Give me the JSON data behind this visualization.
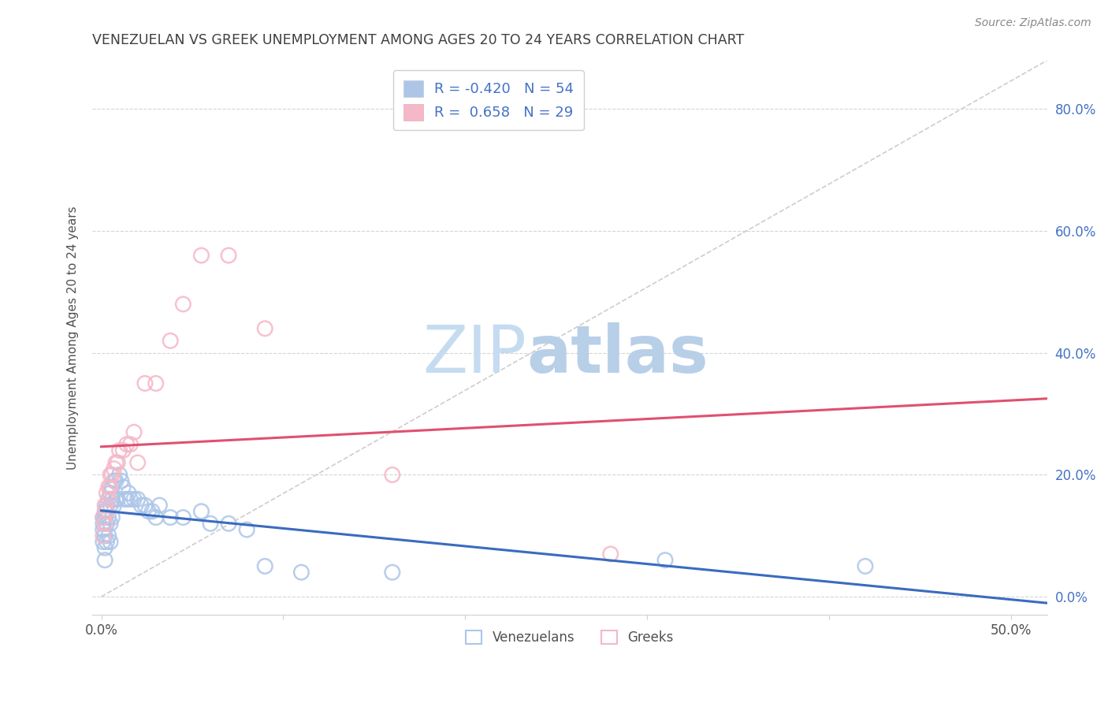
{
  "title": "VENEZUELAN VS GREEK UNEMPLOYMENT AMONG AGES 20 TO 24 YEARS CORRELATION CHART",
  "source": "Source: ZipAtlas.com",
  "xlabel": "",
  "ylabel": "Unemployment Among Ages 20 to 24 years",
  "xlim": [
    -0.005,
    0.52
  ],
  "ylim": [
    -0.03,
    0.88
  ],
  "xticks": [
    0.0,
    0.1,
    0.2,
    0.3,
    0.4,
    0.5
  ],
  "xticklabels_show": [
    "0.0%",
    "",
    "",
    "",
    "",
    "50.0%"
  ],
  "yticks_right": [
    0.0,
    0.2,
    0.4,
    0.6,
    0.8
  ],
  "yticklabels_right": [
    "0.0%",
    "20.0%",
    "40.0%",
    "60.0%",
    "80.0%"
  ],
  "venezuelan_R": "-0.420",
  "venezuelan_N": "54",
  "greek_R": "0.658",
  "greek_N": "29",
  "venezuelan_color": "#adc6e8",
  "venezuelan_edge_color": "#adc6e8",
  "greek_color": "#f5b8c8",
  "greek_edge_color": "#f5b8c8",
  "venezuelan_line_color": "#3a6bbf",
  "greek_line_color": "#e05070",
  "diagonal_color": "#c8c8c8",
  "background_color": "#ffffff",
  "grid_color": "#d5d5d5",
  "title_color": "#404040",
  "axis_label_color": "#505050",
  "tick_color_right": "#4472c4",
  "tick_color_bottom": "#505050",
  "legend_venezuelan_label": "R = -0.420   N = 54",
  "legend_greek_label": "R =  0.658   N = 29",
  "venezuelan_x": [
    0.001,
    0.001,
    0.001,
    0.001,
    0.002,
    0.002,
    0.002,
    0.002,
    0.002,
    0.003,
    0.003,
    0.003,
    0.003,
    0.004,
    0.004,
    0.004,
    0.005,
    0.005,
    0.005,
    0.005,
    0.006,
    0.006,
    0.006,
    0.007,
    0.007,
    0.008,
    0.008,
    0.009,
    0.01,
    0.011,
    0.012,
    0.013,
    0.014,
    0.015,
    0.016,
    0.018,
    0.02,
    0.022,
    0.024,
    0.026,
    0.028,
    0.03,
    0.032,
    0.038,
    0.045,
    0.055,
    0.06,
    0.07,
    0.08,
    0.09,
    0.11,
    0.16,
    0.31,
    0.42
  ],
  "venezuelan_y": [
    0.13,
    0.12,
    0.11,
    0.09,
    0.14,
    0.13,
    0.1,
    0.08,
    0.06,
    0.15,
    0.14,
    0.12,
    0.09,
    0.16,
    0.13,
    0.1,
    0.17,
    0.15,
    0.12,
    0.09,
    0.18,
    0.16,
    0.13,
    0.19,
    0.15,
    0.19,
    0.16,
    0.16,
    0.2,
    0.19,
    0.18,
    0.16,
    0.16,
    0.17,
    0.16,
    0.16,
    0.16,
    0.15,
    0.15,
    0.14,
    0.14,
    0.13,
    0.15,
    0.13,
    0.13,
    0.14,
    0.12,
    0.12,
    0.11,
    0.05,
    0.04,
    0.04,
    0.06,
    0.05
  ],
  "greek_x": [
    0.001,
    0.001,
    0.002,
    0.002,
    0.003,
    0.003,
    0.004,
    0.004,
    0.005,
    0.005,
    0.006,
    0.007,
    0.008,
    0.009,
    0.01,
    0.012,
    0.014,
    0.016,
    0.018,
    0.02,
    0.024,
    0.03,
    0.038,
    0.045,
    0.055,
    0.07,
    0.09,
    0.16,
    0.28
  ],
  "greek_y": [
    0.13,
    0.1,
    0.15,
    0.12,
    0.17,
    0.14,
    0.18,
    0.16,
    0.2,
    0.18,
    0.2,
    0.21,
    0.22,
    0.22,
    0.24,
    0.24,
    0.25,
    0.25,
    0.27,
    0.22,
    0.35,
    0.35,
    0.42,
    0.48,
    0.56,
    0.56,
    0.44,
    0.2,
    0.07
  ],
  "zipatlas_zip_color": "#c5dcf0",
  "zipatlas_atlas_color": "#b8cfe8"
}
